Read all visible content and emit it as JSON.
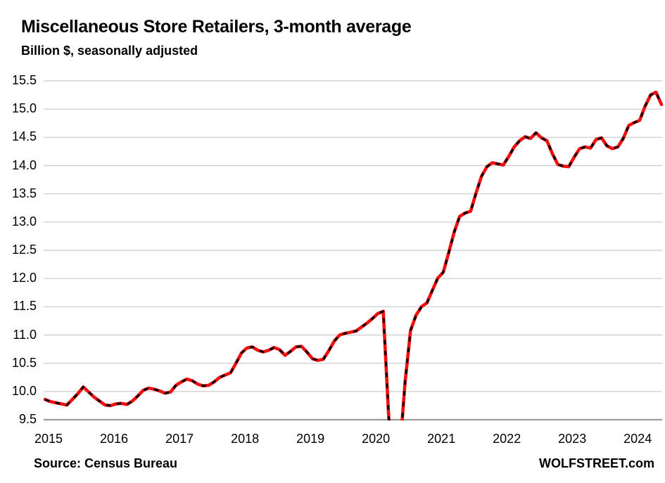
{
  "header": {
    "title": "Miscellaneous Store Retailers, 3-month average",
    "subtitle": "Billion $, seasonally adjusted"
  },
  "footer": {
    "source": "Source: Census Bureau",
    "brand": "WOLFSTREET.com"
  },
  "chart_data": {
    "type": "line",
    "title": "Miscellaneous Store Retailers, 3-month average",
    "ylabel": "Billion $, seasonally adjusted",
    "xlabel": "",
    "frequency": "monthly",
    "start_month": "2015-01",
    "end_month": "2024-06",
    "ylim": [
      9.5,
      15.5
    ],
    "y_ticks": [
      9.5,
      10.0,
      10.5,
      11.0,
      11.5,
      12.0,
      12.5,
      13.0,
      13.5,
      14.0,
      14.5,
      15.0,
      15.5
    ],
    "x_tick_labels": [
      "2015",
      "2016",
      "2017",
      "2018",
      "2019",
      "2020",
      "2021",
      "2022",
      "2023",
      "2024"
    ],
    "grid": "horizontal",
    "legend": "none",
    "line_color": "#f01010",
    "dash_overlay_color": "#000000",
    "values_clipped_below_axis": true,
    "series": [
      {
        "name": "Miscellaneous store retailers sales, 3-month moving average (Billion $)",
        "values": [
          9.86,
          9.82,
          9.8,
          9.78,
          9.76,
          9.86,
          9.96,
          10.08,
          9.99,
          9.9,
          9.83,
          9.76,
          9.75,
          9.78,
          9.79,
          9.77,
          9.83,
          9.92,
          10.02,
          10.06,
          10.04,
          10.01,
          9.97,
          9.99,
          10.11,
          10.17,
          10.22,
          10.19,
          10.13,
          10.1,
          10.11,
          10.17,
          10.25,
          10.29,
          10.33,
          10.5,
          10.68,
          10.77,
          10.79,
          10.73,
          10.7,
          10.73,
          10.78,
          10.74,
          10.64,
          10.71,
          10.79,
          10.8,
          10.7,
          10.58,
          10.55,
          10.57,
          10.72,
          10.89,
          11.0,
          11.03,
          11.05,
          11.07,
          11.14,
          11.21,
          11.29,
          11.38,
          11.42,
          9.55,
          8.7,
          8.9,
          10.16,
          11.08,
          11.35,
          11.5,
          11.57,
          11.79,
          12.01,
          12.11,
          12.46,
          12.82,
          13.1,
          13.16,
          13.19,
          13.51,
          13.81,
          13.98,
          14.05,
          14.03,
          14.01,
          14.16,
          14.33,
          14.44,
          14.51,
          14.48,
          14.58,
          14.49,
          14.44,
          14.21,
          14.02,
          13.99,
          13.98,
          14.15,
          14.3,
          14.33,
          14.31,
          14.46,
          14.49,
          14.35,
          14.3,
          14.33,
          14.48,
          14.71,
          14.76,
          14.8,
          15.05,
          15.25,
          15.3,
          15.08
        ]
      }
    ]
  }
}
